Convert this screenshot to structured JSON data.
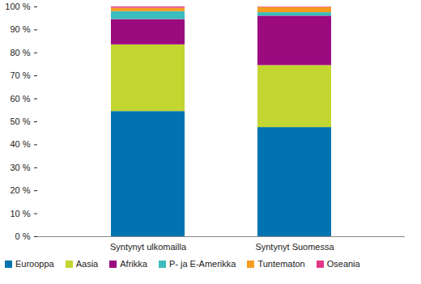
{
  "chart_data": {
    "type": "bar",
    "stacked": true,
    "categories": [
      "Syntynyt ulkomailla",
      "Syntynyt Suomessa"
    ],
    "series": [
      {
        "name": "Eurooppa",
        "color": "#0073b0",
        "values": [
          54.5,
          47.5
        ]
      },
      {
        "name": "Aasia",
        "color": "#c3d530",
        "values": [
          29,
          27
        ]
      },
      {
        "name": "Afrikka",
        "color": "#9b0a7e",
        "values": [
          11,
          21.5
        ]
      },
      {
        "name": "P- ja E-Amerikka",
        "color": "#3cbcbc",
        "values": [
          3.5,
          1.5
        ]
      },
      {
        "name": "Tuntematon",
        "color": "#f39c1f",
        "values": [
          1.5,
          2.3
        ]
      },
      {
        "name": "Oseania",
        "color": "#e2358a",
        "values": [
          0.5,
          0.2
        ]
      }
    ],
    "ylim": [
      0,
      100
    ],
    "yticks": [
      {
        "value": 0,
        "label": "0 %"
      },
      {
        "value": 10,
        "label": "10 %"
      },
      {
        "value": 20,
        "label": "20 %"
      },
      {
        "value": 30,
        "label": "30 %"
      },
      {
        "value": 40,
        "label": "40 %"
      },
      {
        "value": 50,
        "label": "50 %"
      },
      {
        "value": 60,
        "label": "60 %"
      },
      {
        "value": 70,
        "label": "70 %"
      },
      {
        "value": 80,
        "label": "80 %"
      },
      {
        "value": 90,
        "label": "90 %"
      },
      {
        "value": 100,
        "label": "100 %"
      }
    ],
    "grid": false,
    "legend": "bottom"
  }
}
